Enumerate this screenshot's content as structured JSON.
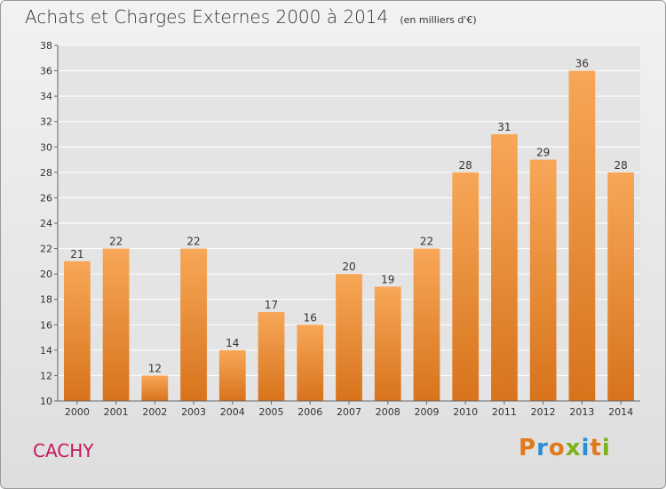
{
  "header": {
    "title": "Achats et Charges Externes 2000 à 2014",
    "unit": "(en milliers d'€)"
  },
  "footer": {
    "city": "CACHY",
    "brand": "Proxiti",
    "brand_colors": [
      "#e0791b",
      "#2b8fd4",
      "#e0791b",
      "#7bb31a",
      "#2b8fd4",
      "#e0791b",
      "#7bb31a"
    ]
  },
  "chart_data": {
    "type": "bar",
    "title": "Achats et Charges Externes 2000 à 2014",
    "subtitle": "(en milliers d'€)",
    "categories": [
      "2000",
      "2001",
      "2002",
      "2003",
      "2004",
      "2005",
      "2006",
      "2007",
      "2008",
      "2009",
      "2010",
      "2011",
      "2012",
      "2013",
      "2014"
    ],
    "values": [
      21,
      22,
      12,
      22,
      14,
      17,
      16,
      20,
      19,
      22,
      28,
      31,
      29,
      36,
      28
    ],
    "ylim": [
      10,
      38
    ],
    "yticks": [
      10,
      12,
      14,
      16,
      18,
      20,
      22,
      24,
      26,
      28,
      30,
      32,
      34,
      36,
      38
    ],
    "grid": true,
    "bar_color_light": "#f7a757",
    "bar_color_dark": "#d8731c"
  }
}
